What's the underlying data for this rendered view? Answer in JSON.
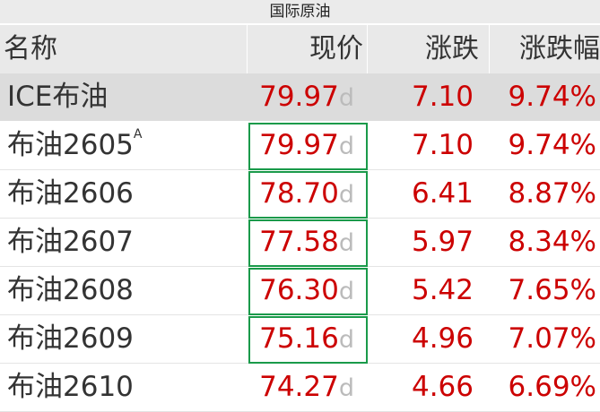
{
  "title": "国际原油",
  "columns": [
    "名称",
    "现价",
    "涨跌",
    "涨跌幅"
  ],
  "colors": {
    "up": "#cc0000",
    "selected_border": "#1a9a4a",
    "highlight_row": "#dcdcdc"
  },
  "rows": [
    {
      "name": "ICE布油",
      "sup": "",
      "price": "79.97",
      "flag": "d",
      "change": "7.10",
      "pct": "9.74%",
      "highlighted": true,
      "boxed": false
    },
    {
      "name": "布油2605",
      "sup": "A",
      "price": "79.97",
      "flag": "d",
      "change": "7.10",
      "pct": "9.74%",
      "highlighted": false,
      "boxed": true
    },
    {
      "name": "布油2606",
      "sup": "",
      "price": "78.70",
      "flag": "d",
      "change": "6.41",
      "pct": "8.87%",
      "highlighted": false,
      "boxed": true
    },
    {
      "name": "布油2607",
      "sup": "",
      "price": "77.58",
      "flag": "d",
      "change": "5.97",
      "pct": "8.34%",
      "highlighted": false,
      "boxed": true
    },
    {
      "name": "布油2608",
      "sup": "",
      "price": "76.30",
      "flag": "d",
      "change": "5.42",
      "pct": "7.65%",
      "highlighted": false,
      "boxed": true
    },
    {
      "name": "布油2609",
      "sup": "",
      "price": "75.16",
      "flag": "d",
      "change": "4.96",
      "pct": "7.07%",
      "highlighted": false,
      "boxed": true
    },
    {
      "name": "布油2610",
      "sup": "",
      "price": "74.27",
      "flag": "d",
      "change": "4.66",
      "pct": "6.69%",
      "highlighted": false,
      "boxed": false
    }
  ]
}
